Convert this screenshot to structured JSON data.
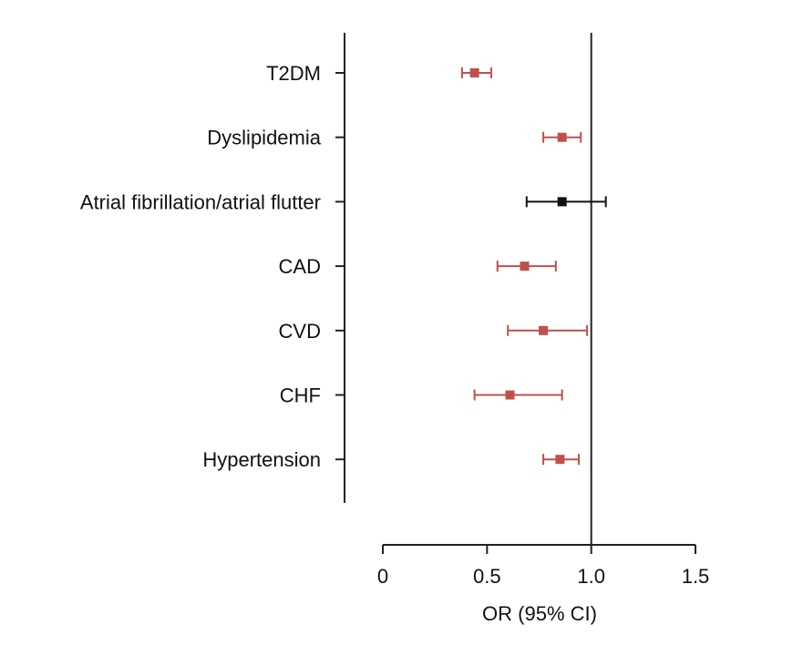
{
  "chart_data": {
    "type": "forest",
    "xlabel": "OR (95% CI)",
    "xlim": [
      0,
      1.5
    ],
    "x_ticks": [
      {
        "value": 0,
        "label": "0"
      },
      {
        "value": 0.5,
        "label": "0.5"
      },
      {
        "value": 1.0,
        "label": "1.0"
      },
      {
        "value": 1.5,
        "label": "1.5"
      }
    ],
    "reference_line": 1.0,
    "significant_color": "#c0504d",
    "nonsignificant_color": "#111111",
    "rows": [
      {
        "label": "T2DM",
        "or": 0.44,
        "lower": 0.38,
        "upper": 0.52,
        "significant": true
      },
      {
        "label": "Dyslipidemia",
        "or": 0.86,
        "lower": 0.77,
        "upper": 0.95,
        "significant": true
      },
      {
        "label": "Atrial fibrillation/atrial flutter",
        "or": 0.86,
        "lower": 0.69,
        "upper": 1.07,
        "significant": false
      },
      {
        "label": "CAD",
        "or": 0.68,
        "lower": 0.55,
        "upper": 0.83,
        "significant": true
      },
      {
        "label": "CVD",
        "or": 0.77,
        "lower": 0.6,
        "upper": 0.98,
        "significant": true
      },
      {
        "label": "CHF",
        "or": 0.61,
        "lower": 0.44,
        "upper": 0.86,
        "significant": true
      },
      {
        "label": "Hypertension",
        "or": 0.85,
        "lower": 0.77,
        "upper": 0.94,
        "significant": true
      }
    ]
  }
}
